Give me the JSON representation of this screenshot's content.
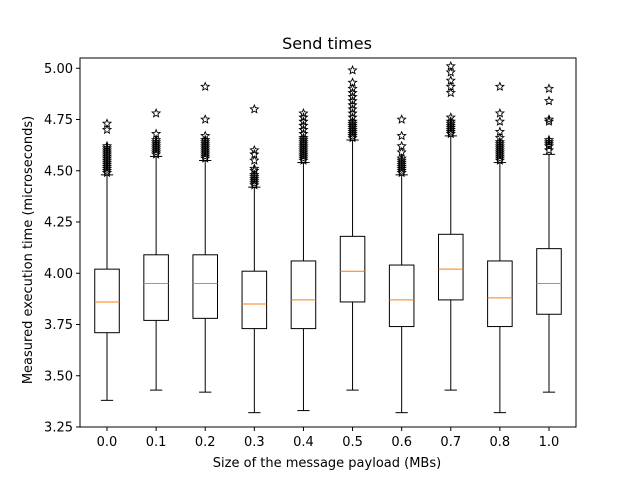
{
  "chart_data": {
    "type": "box",
    "title": "Send times",
    "xlabel": "Size of the message payload (MBs)",
    "ylabel": "Measured execution time (microseconds)",
    "ylim": [
      3.25,
      5.05
    ],
    "yticks": [
      "3.25",
      "3.50",
      "3.75",
      "4.00",
      "4.25",
      "4.50",
      "4.75",
      "5.00"
    ],
    "grid": false,
    "colors": {
      "median": "#ff7f0e",
      "box": "#000000"
    },
    "boxes": [
      {
        "label": "0.0",
        "whisker_low": 3.38,
        "q1": 3.71,
        "median": 3.86,
        "q3": 4.02,
        "whisker_high": 4.48,
        "outliers": [
          4.49,
          4.5,
          4.51,
          4.52,
          4.53,
          4.54,
          4.55,
          4.56,
          4.57,
          4.58,
          4.59,
          4.6,
          4.61,
          4.62,
          4.7,
          4.73
        ]
      },
      {
        "label": "0.1",
        "whisker_low": 3.43,
        "q1": 3.77,
        "median": 3.95,
        "q3": 4.09,
        "whisker_high": 4.57,
        "outliers": [
          4.58,
          4.59,
          4.6,
          4.61,
          4.62,
          4.63,
          4.64,
          4.65,
          4.68,
          4.78
        ]
      },
      {
        "label": "0.2",
        "whisker_low": 3.42,
        "q1": 3.78,
        "median": 3.95,
        "q3": 4.09,
        "whisker_high": 4.55,
        "outliers": [
          4.56,
          4.57,
          4.58,
          4.59,
          4.6,
          4.61,
          4.62,
          4.63,
          4.64,
          4.65,
          4.67,
          4.75,
          4.91
        ]
      },
      {
        "label": "0.3",
        "whisker_low": 3.32,
        "q1": 3.73,
        "median": 3.85,
        "q3": 4.01,
        "whisker_high": 4.42,
        "outliers": [
          4.43,
          4.44,
          4.45,
          4.46,
          4.47,
          4.48,
          4.5,
          4.51,
          4.55,
          4.58,
          4.6,
          4.8
        ]
      },
      {
        "label": "0.4",
        "whisker_low": 3.33,
        "q1": 3.73,
        "median": 3.87,
        "q3": 4.06,
        "whisker_high": 4.54,
        "outliers": [
          4.55,
          4.56,
          4.57,
          4.58,
          4.59,
          4.6,
          4.61,
          4.62,
          4.63,
          4.64,
          4.65,
          4.66,
          4.68,
          4.7,
          4.72,
          4.74,
          4.76,
          4.78
        ]
      },
      {
        "label": "0.5",
        "whisker_low": 3.43,
        "q1": 3.86,
        "median": 4.01,
        "q3": 4.18,
        "whisker_high": 4.65,
        "outliers": [
          4.66,
          4.67,
          4.68,
          4.69,
          4.7,
          4.71,
          4.72,
          4.73,
          4.74,
          4.76,
          4.78,
          4.8,
          4.82,
          4.84,
          4.86,
          4.88,
          4.9,
          4.93,
          4.99
        ]
      },
      {
        "label": "0.6",
        "whisker_low": 3.32,
        "q1": 3.74,
        "median": 3.87,
        "q3": 4.04,
        "whisker_high": 4.48,
        "outliers": [
          4.49,
          4.5,
          4.51,
          4.52,
          4.53,
          4.54,
          4.55,
          4.56,
          4.59,
          4.62,
          4.67,
          4.75
        ]
      },
      {
        "label": "0.7",
        "whisker_low": 3.43,
        "q1": 3.87,
        "median": 4.02,
        "q3": 4.19,
        "whisker_high": 4.67,
        "outliers": [
          4.68,
          4.69,
          4.7,
          4.71,
          4.72,
          4.73,
          4.74,
          4.76,
          4.88,
          4.91,
          4.94,
          4.98,
          5.01
        ]
      },
      {
        "label": "0.8",
        "whisker_low": 3.32,
        "q1": 3.74,
        "median": 3.88,
        "q3": 4.06,
        "whisker_high": 4.54,
        "outliers": [
          4.55,
          4.56,
          4.57,
          4.58,
          4.59,
          4.6,
          4.61,
          4.62,
          4.63,
          4.64,
          4.66,
          4.69,
          4.74,
          4.78,
          4.91
        ]
      },
      {
        "label": "1.0",
        "whisker_low": 3.42,
        "q1": 3.8,
        "median": 3.95,
        "q3": 4.12,
        "whisker_high": 4.58,
        "outliers": [
          4.6,
          4.62,
          4.63,
          4.64,
          4.65,
          4.74,
          4.75,
          4.84,
          4.9
        ]
      }
    ]
  }
}
